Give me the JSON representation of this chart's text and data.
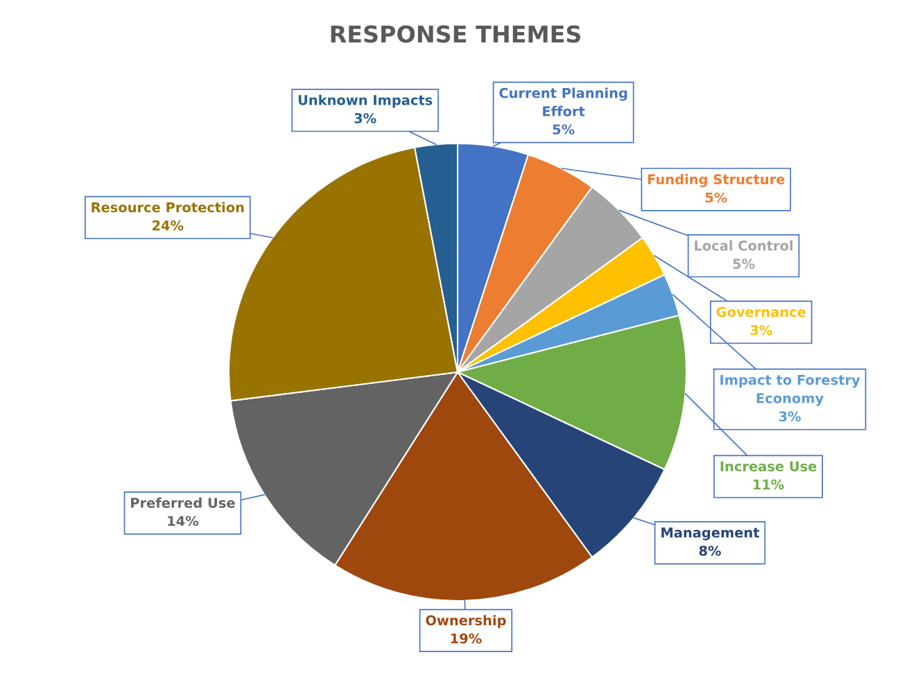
{
  "chart_data": {
    "type": "pie",
    "title": "RESPONSE THEMES",
    "categories": [
      "Current Planning\nEffort",
      "Funding Structure",
      "Local Control",
      "Governance",
      "Impact to Forestry\nEconomy",
      "Increase Use",
      "Management",
      "Ownership",
      "Preferred Use",
      "Resource Protection",
      "Unknown Impacts"
    ],
    "values": [
      5,
      5,
      5,
      3,
      3,
      11,
      8,
      19,
      14,
      24,
      3
    ],
    "colors": [
      "#4472c4",
      "#ed7d31",
      "#a5a5a5",
      "#ffc000",
      "#5b9bd5",
      "#70ad47",
      "#264478",
      "#9e480e",
      "#636363",
      "#997300",
      "#255e91"
    ],
    "value_labels": [
      "5%",
      "5%",
      "5%",
      "3%",
      "3%",
      "11%",
      "8%",
      "19%",
      "14%",
      "24%",
      "3%"
    ]
  }
}
